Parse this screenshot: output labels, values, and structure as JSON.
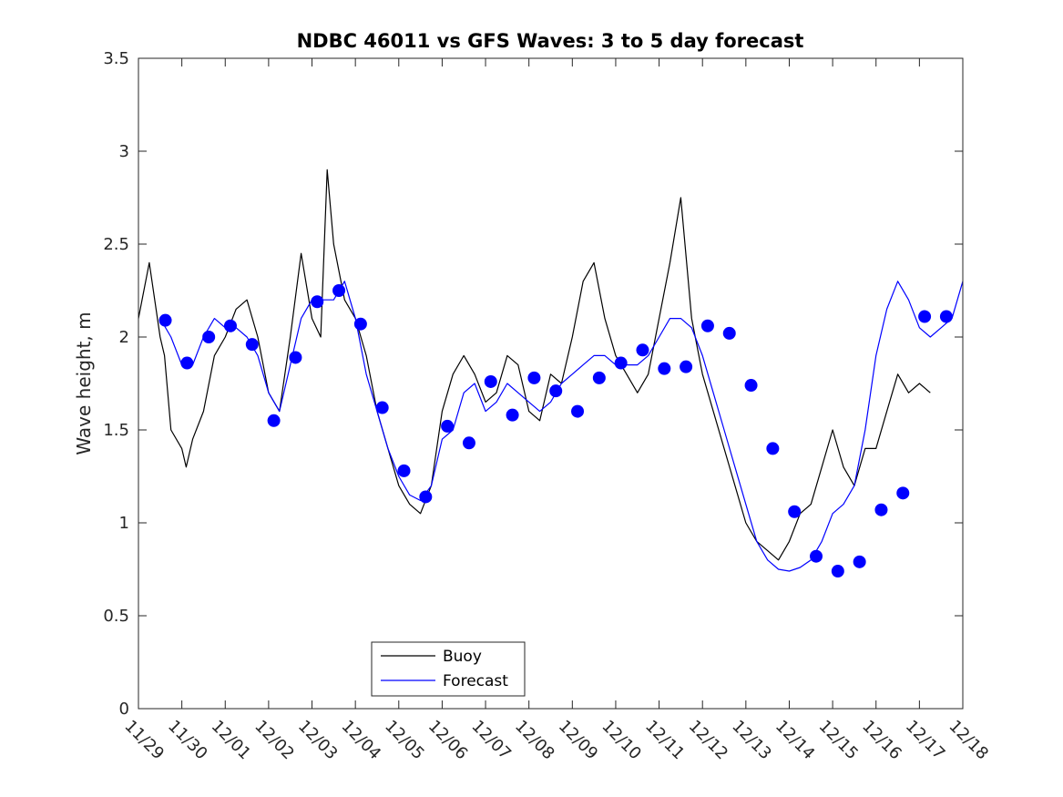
{
  "chart_data": {
    "type": "line",
    "title": "NDBC 46011 vs GFS Waves: 3 to 5 day forecast",
    "xlabel": "",
    "ylabel": "Wave height, m",
    "xlim": [
      0,
      19
    ],
    "ylim": [
      0,
      3.5
    ],
    "yticks": [
      0,
      0.5,
      1,
      1.5,
      2,
      2.5,
      3,
      3.5
    ],
    "ytick_labels": [
      "0",
      "0.5",
      "1",
      "1.5",
      "2",
      "2.5",
      "3",
      "3.5"
    ],
    "xtick_labels": [
      "11/29",
      "11/30",
      "12/01",
      "12/02",
      "12/03",
      "12/04",
      "12/05",
      "12/06",
      "12/07",
      "12/08",
      "12/09",
      "12/10",
      "12/11",
      "12/12",
      "12/13",
      "12/14",
      "12/15",
      "12/16",
      "12/17",
      "12/18"
    ],
    "legend": {
      "location": "bottom-center",
      "entries": [
        {
          "label": "Buoy",
          "color": "#000000"
        },
        {
          "label": "Forecast",
          "color": "#0000ff"
        }
      ]
    },
    "series": [
      {
        "name": "Buoy",
        "color": "#000000",
        "x": [
          0,
          0.25,
          0.5,
          0.6,
          0.75,
          1.0,
          1.1,
          1.25,
          1.5,
          1.75,
          2.0,
          2.25,
          2.5,
          2.75,
          3.0,
          3.25,
          3.5,
          3.75,
          4.0,
          4.2,
          4.35,
          4.5,
          4.75,
          5.0,
          5.25,
          5.5,
          5.75,
          6.0,
          6.25,
          6.5,
          6.75,
          7.0,
          7.25,
          7.5,
          7.75,
          8.0,
          8.25,
          8.5,
          8.75,
          9.0,
          9.25,
          9.5,
          9.75,
          10.0,
          10.25,
          10.5,
          10.75,
          11.0,
          11.25,
          11.5,
          11.75,
          12.0,
          12.25,
          12.5,
          12.75,
          13.0,
          13.25,
          13.5,
          13.75,
          14.0,
          14.25,
          14.5,
          14.75,
          15.0,
          15.25,
          15.5,
          15.75,
          16.0,
          16.25,
          16.5,
          16.75,
          17.0,
          17.25,
          17.5,
          17.75,
          18.0,
          18.25
        ],
        "y": [
          2.1,
          2.4,
          2.0,
          1.9,
          1.5,
          1.4,
          1.3,
          1.45,
          1.6,
          1.9,
          2.0,
          2.15,
          2.2,
          2.0,
          1.7,
          1.6,
          2.0,
          2.45,
          2.1,
          2.0,
          2.9,
          2.5,
          2.2,
          2.1,
          1.9,
          1.6,
          1.4,
          1.2,
          1.1,
          1.05,
          1.2,
          1.6,
          1.8,
          1.9,
          1.8,
          1.65,
          1.7,
          1.9,
          1.85,
          1.6,
          1.55,
          1.8,
          1.75,
          2.0,
          2.3,
          2.4,
          2.1,
          1.9,
          1.8,
          1.7,
          1.8,
          2.1,
          2.4,
          2.75,
          2.1,
          1.8,
          1.6,
          1.4,
          1.2,
          1.0,
          0.9,
          0.85,
          0.8,
          0.9,
          1.05,
          1.1,
          1.3,
          1.5,
          1.3,
          1.2,
          1.4,
          1.4,
          1.6,
          1.8,
          1.7,
          1.75,
          1.7
        ]
      },
      {
        "name": "Forecast",
        "color": "#0000ff",
        "x": [
          0.5,
          0.75,
          1.0,
          1.25,
          1.5,
          1.75,
          2.0,
          2.25,
          2.5,
          2.75,
          3.0,
          3.25,
          3.5,
          3.75,
          4.0,
          4.25,
          4.5,
          4.75,
          5.0,
          5.25,
          5.5,
          5.75,
          6.0,
          6.25,
          6.5,
          6.75,
          7.0,
          7.25,
          7.5,
          7.75,
          8.0,
          8.25,
          8.5,
          8.75,
          9.0,
          9.25,
          9.5,
          9.75,
          10.0,
          10.25,
          10.5,
          10.75,
          11.0,
          11.25,
          11.5,
          11.75,
          12.0,
          12.25,
          12.5,
          12.75,
          13.0,
          13.25,
          13.5,
          13.75,
          14.0,
          14.25,
          14.5,
          14.75,
          15.0,
          15.25,
          15.5,
          15.75,
          16.0,
          16.25,
          16.5,
          16.75,
          17.0,
          17.25,
          17.5,
          17.75,
          18.0,
          18.25,
          18.5,
          18.75,
          19.0
        ],
        "y": [
          2.1,
          2.0,
          1.85,
          1.85,
          2.0,
          2.1,
          2.05,
          2.05,
          2.0,
          1.9,
          1.7,
          1.6,
          1.85,
          2.1,
          2.2,
          2.2,
          2.2,
          2.3,
          2.1,
          1.8,
          1.6,
          1.4,
          1.25,
          1.15,
          1.12,
          1.2,
          1.45,
          1.5,
          1.7,
          1.75,
          1.6,
          1.65,
          1.75,
          1.7,
          1.65,
          1.6,
          1.65,
          1.75,
          1.8,
          1.85,
          1.9,
          1.9,
          1.85,
          1.85,
          1.85,
          1.9,
          2.0,
          2.1,
          2.1,
          2.05,
          1.9,
          1.7,
          1.5,
          1.3,
          1.1,
          0.9,
          0.8,
          0.75,
          0.74,
          0.76,
          0.8,
          0.9,
          1.05,
          1.1,
          1.2,
          1.5,
          1.9,
          2.15,
          2.3,
          2.2,
          2.05,
          2.0,
          2.05,
          2.1,
          2.3
        ]
      },
      {
        "name": "Forecast markers",
        "color": "#0000ff",
        "marker": "circle",
        "x": [
          0.62,
          1.12,
          1.62,
          2.12,
          2.62,
          3.12,
          3.62,
          4.12,
          4.62,
          5.12,
          5.62,
          6.12,
          6.62,
          7.12,
          7.62,
          8.12,
          8.62,
          9.12,
          9.62,
          10.12,
          10.62,
          11.12,
          11.62,
          12.12,
          12.62,
          13.12,
          13.62,
          14.12,
          14.62,
          15.12,
          15.62,
          16.12,
          16.62,
          17.12,
          17.62,
          18.12,
          18.62
        ],
        "y": [
          2.09,
          1.86,
          2.0,
          2.06,
          1.96,
          1.55,
          1.89,
          2.19,
          2.25,
          2.07,
          1.62,
          1.28,
          1.14,
          1.52,
          1.43,
          1.76,
          1.58,
          1.78,
          1.71,
          1.6,
          1.78,
          1.86,
          1.93,
          1.83,
          1.84,
          2.06,
          2.02,
          1.74,
          1.4,
          1.06,
          0.82,
          0.74,
          0.79,
          1.07,
          1.16,
          2.11,
          2.11
        ]
      }
    ]
  }
}
